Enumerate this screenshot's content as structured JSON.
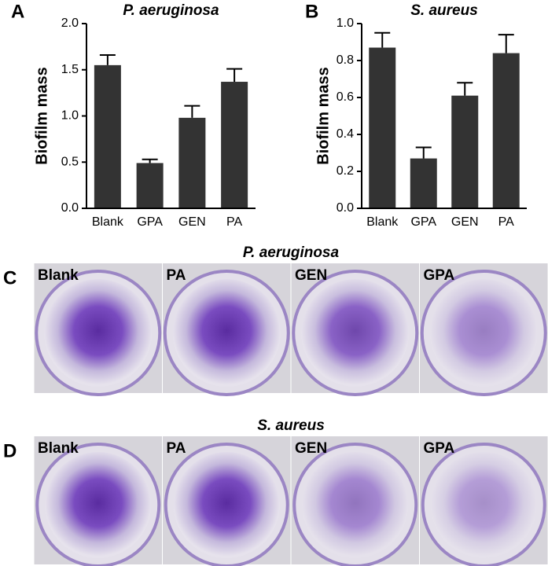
{
  "chart_data": [
    {
      "type": "bar",
      "panel": "A",
      "title": "P. aeruginosa",
      "ylabel": "Biofilm mass",
      "categories": [
        "Blank",
        "GPA",
        "GEN",
        "PA"
      ],
      "values": [
        1.55,
        0.49,
        0.98,
        1.37
      ],
      "errors": [
        0.11,
        0.04,
        0.13,
        0.14
      ],
      "color": "#333333",
      "ylim": [
        0,
        2
      ],
      "yticks": [
        {
          "value": 0,
          "label": "0.0"
        },
        0.5,
        {
          "value": 1,
          "label": "1.0"
        },
        1.5,
        {
          "value": 2,
          "label": "2.0"
        }
      ]
    },
    {
      "type": "bar",
      "panel": "B",
      "title": "S. aureus",
      "ylabel": "Biofilm mass",
      "categories": [
        "Blank",
        "GPA",
        "GEN",
        "PA"
      ],
      "values": [
        0.87,
        0.27,
        0.61,
        0.84
      ],
      "errors": [
        0.08,
        0.06,
        0.07,
        0.1
      ],
      "color": "#333333",
      "ylim": [
        0,
        1
      ],
      "yticks": [
        {
          "value": 0,
          "label": "0.0"
        },
        0.2,
        0.4,
        0.6,
        0.8,
        {
          "value": 1,
          "label": "1.0"
        }
      ]
    }
  ],
  "photos": [
    {
      "panel": "C",
      "title": "P. aeruginosa",
      "wells": [
        "Blank",
        "PA",
        "GEN",
        "GPA"
      ]
    },
    {
      "panel": "D",
      "title": "S. aureus",
      "wells": [
        "Blank",
        "PA",
        "GEN",
        "GPA"
      ]
    }
  ]
}
